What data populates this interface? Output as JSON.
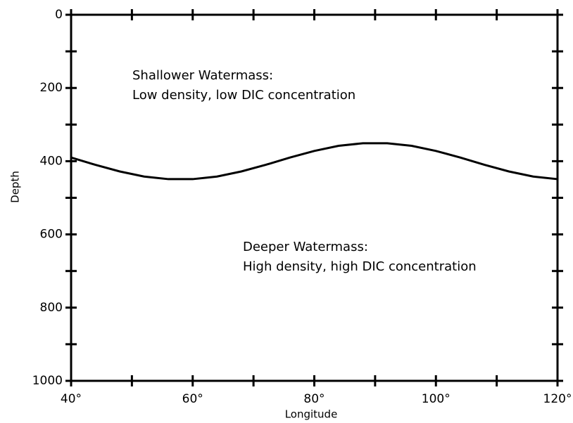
{
  "chart_data": {
    "type": "line",
    "x_label": "Longitude",
    "y_label": "Depth",
    "x": [
      40,
      44,
      48,
      52,
      56,
      60,
      64,
      68,
      72,
      76,
      80,
      84,
      88,
      92,
      96,
      100,
      104,
      108,
      112,
      116,
      120
    ],
    "series": [
      {
        "color": "#000000",
        "values": [
          390,
          410,
          428,
          442,
          449,
          449,
          442,
          428,
          410,
          390,
          372,
          358,
          351,
          351,
          358,
          372,
          390,
          410,
          428,
          442,
          449
        ]
      }
    ],
    "xlim": [
      40,
      120
    ],
    "xticks": [
      {
        "value": 40,
        "label": "40°"
      },
      {
        "value": 60,
        "label": "60°"
      },
      {
        "value": 80,
        "label": "80°"
      },
      {
        "value": 100,
        "label": "100°"
      },
      {
        "value": 120,
        "label": "120°"
      }
    ],
    "xminorticks": [
      50,
      70,
      90,
      110
    ],
    "ylim": [
      0,
      1000
    ],
    "y_inverted": true,
    "yticks": [
      0,
      200,
      400,
      600,
      800,
      1000
    ],
    "yminorticks": [
      100,
      300,
      500,
      700,
      900
    ],
    "annotations": [
      [
        "Shallower Watermass:",
        "Low density, low DIC concentration"
      ],
      [
        "Deeper Watermass:",
        "High density, high DIC concentration"
      ]
    ]
  }
}
